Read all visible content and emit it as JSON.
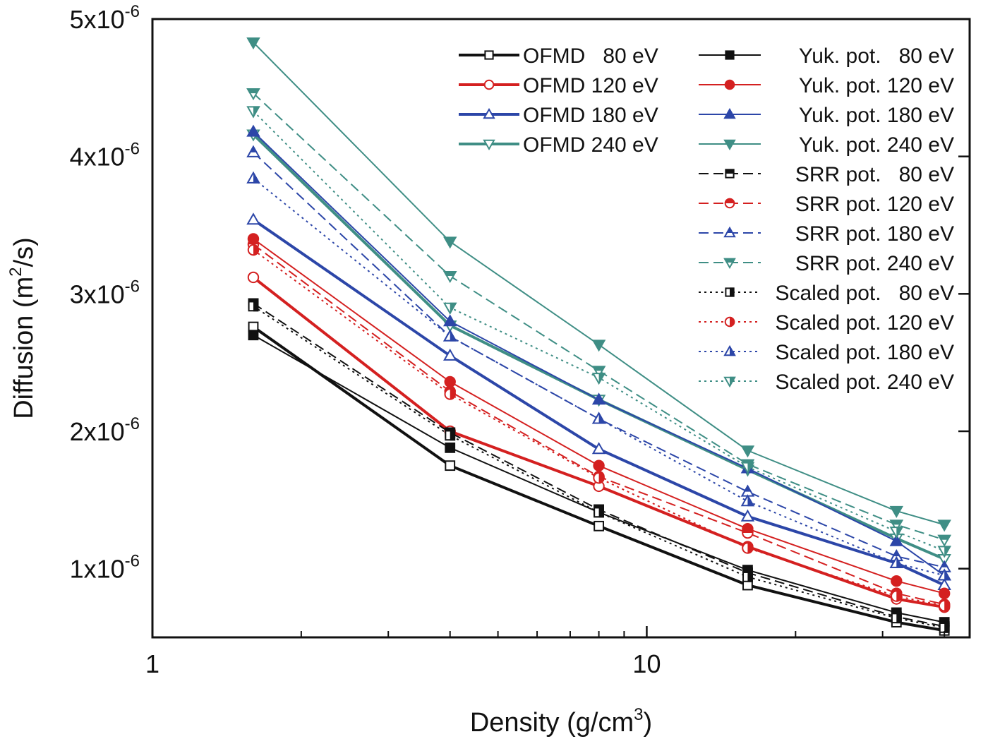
{
  "chart_data": {
    "type": "line",
    "xlabel": "Density (g/cm",
    "xlabel_sup": "3",
    "xlabel_end": ")",
    "ylabel": "Diffusion (m",
    "ylabel_sup": "2",
    "ylabel_end": "/s)",
    "xscale": "log",
    "xlim": [
      1,
      45
    ],
    "ylim": [
      5e-07,
      5e-06
    ],
    "x_ticks": [
      {
        "value": 1,
        "label": "1"
      },
      {
        "value": 10,
        "label": "10"
      }
    ],
    "y_ticks": [
      {
        "value": 1e-06,
        "base": "1x10",
        "exp": "-6"
      },
      {
        "value": 2e-06,
        "base": "2x10",
        "exp": "-6"
      },
      {
        "value": 3e-06,
        "base": "3x10",
        "exp": "-6"
      },
      {
        "value": 4e-06,
        "base": "4x10",
        "exp": "-6"
      },
      {
        "value": 5e-06,
        "base": "5x10",
        "exp": "-6"
      }
    ],
    "legend_position": "top-right",
    "colors": {
      "80": "#111111",
      "120": "#d42020",
      "180": "#2c46a8",
      "240": "#3f8e85"
    },
    "x": [
      1.6,
      4,
      8,
      16,
      32,
      40
    ],
    "series": [
      {
        "name": "OFMD   80 eV",
        "color": "#111111",
        "line": "solid",
        "width": 4,
        "marker": "square",
        "fill": "open",
        "values": [
          2.76e-06,
          1.75e-06,
          1.31e-06,
          8.8e-07,
          6.1e-07,
          5.5e-07
        ]
      },
      {
        "name": "OFMD 120 eV",
        "color": "#d42020",
        "line": "solid",
        "width": 4,
        "marker": "circle",
        "fill": "open",
        "values": [
          3.12e-06,
          2e-06,
          1.6e-06,
          1.16e-06,
          7.8e-07,
          7.2e-07
        ]
      },
      {
        "name": "OFMD 180 eV",
        "color": "#2c46a8",
        "line": "solid",
        "width": 4,
        "marker": "triangle-up",
        "fill": "open",
        "values": [
          3.54e-06,
          2.55e-06,
          1.87e-06,
          1.38e-06,
          1.04e-06,
          8.8e-07
        ]
      },
      {
        "name": "OFMD 240 eV",
        "color": "#3f8e85",
        "line": "solid",
        "width": 4,
        "marker": "triangle-down",
        "fill": "open",
        "values": [
          4.16e-06,
          2.77e-06,
          2.23e-06,
          1.72e-06,
          1.22e-06,
          1.07e-06
        ]
      },
      {
        "name": "Yuk. pot.   80 eV",
        "color": "#111111",
        "line": "solid",
        "width": 2,
        "marker": "square",
        "fill": "full",
        "values": [
          2.7e-06,
          1.88e-06,
          1.41e-06,
          9.9e-07,
          6.8e-07,
          6.1e-07
        ]
      },
      {
        "name": "Yuk. pot. 120 eV",
        "color": "#d42020",
        "line": "solid",
        "width": 2,
        "marker": "circle",
        "fill": "full",
        "values": [
          3.4e-06,
          2.36e-06,
          1.75e-06,
          1.29e-06,
          9.1e-07,
          8.2e-07
        ]
      },
      {
        "name": "Yuk. pot. 180 eV",
        "color": "#2c46a8",
        "line": "solid",
        "width": 2,
        "marker": "triangle-up",
        "fill": "full",
        "values": [
          4.18e-06,
          2.8e-06,
          2.23e-06,
          1.73e-06,
          1.2e-06,
          9.5e-07
        ]
      },
      {
        "name": "Yuk. pot. 240 eV",
        "color": "#3f8e85",
        "line": "solid",
        "width": 2,
        "marker": "triangle-down",
        "fill": "full",
        "values": [
          4.83e-06,
          3.38e-06,
          2.63e-06,
          1.86e-06,
          1.42e-06,
          1.32e-06
        ]
      },
      {
        "name": "SRR pot.   80 eV",
        "color": "#111111",
        "line": "dashed",
        "width": 2,
        "marker": "square",
        "fill": "top",
        "values": [
          2.93e-06,
          1.99e-06,
          1.43e-06,
          9.7e-07,
          6.5e-07,
          5.8e-07
        ]
      },
      {
        "name": "SRR pot. 120 eV",
        "color": "#d42020",
        "line": "dashed",
        "width": 2,
        "marker": "circle",
        "fill": "top",
        "values": [
          3.36e-06,
          2.29e-06,
          1.67e-06,
          1.26e-06,
          8.2e-07,
          7.4e-07
        ]
      },
      {
        "name": "SRR pot. 180 eV",
        "color": "#2c46a8",
        "line": "dashed",
        "width": 2,
        "marker": "triangle-up",
        "fill": "top",
        "values": [
          4.03e-06,
          2.69e-06,
          2.09e-06,
          1.56e-06,
          1.09e-06,
          1.01e-06
        ]
      },
      {
        "name": "SRR pot. 240 eV",
        "color": "#3f8e85",
        "line": "dashed",
        "width": 2,
        "marker": "triangle-down",
        "fill": "top",
        "values": [
          4.46e-06,
          3.13e-06,
          2.44e-06,
          1.76e-06,
          1.32e-06,
          1.21e-06
        ]
      },
      {
        "name": "Scaled pot.   80 eV",
        "color": "#111111",
        "line": "dotted",
        "width": 2,
        "marker": "square",
        "fill": "right",
        "values": [
          2.91e-06,
          1.97e-06,
          1.41e-06,
          9.4e-07,
          6.4e-07,
          5.7e-07
        ]
      },
      {
        "name": "Scaled pot. 120 eV",
        "color": "#d42020",
        "line": "dotted",
        "width": 2,
        "marker": "circle",
        "fill": "right",
        "values": [
          3.32e-06,
          2.27e-06,
          1.66e-06,
          1.15e-06,
          8e-07,
          7.3e-07
        ]
      },
      {
        "name": "Scaled pot. 180 eV",
        "color": "#2c46a8",
        "line": "dotted",
        "width": 2,
        "marker": "triangle-up",
        "fill": "right",
        "values": [
          3.84e-06,
          2.69e-06,
          2.09e-06,
          1.49e-06,
          1.04e-06,
          9.5e-07
        ]
      },
      {
        "name": "Scaled pot. 240 eV",
        "color": "#3f8e85",
        "line": "dotted",
        "width": 2,
        "marker": "triangle-down",
        "fill": "right",
        "values": [
          4.33e-06,
          2.9e-06,
          2.39e-06,
          1.74e-06,
          1.27e-06,
          1.13e-06
        ]
      }
    ]
  }
}
